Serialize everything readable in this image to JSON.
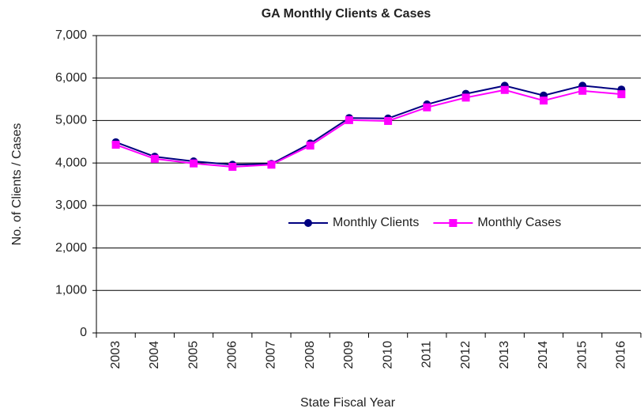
{
  "chart_data": {
    "type": "line",
    "title": "GA Monthly Clients & Cases",
    "x_label": "State Fiscal Year",
    "y_label": "No. of Clients / Cases",
    "categories": [
      "2003",
      "2004",
      "2005",
      "2006",
      "2007",
      "2008",
      "2009",
      "2010",
      "2011",
      "2012",
      "2013",
      "2014",
      "2015",
      "2016"
    ],
    "series": [
      {
        "name": "Monthly Clients",
        "color": "#000080",
        "marker": "circle",
        "values": [
          4490,
          4150,
          4040,
          3960,
          3980,
          4460,
          5060,
          5050,
          5380,
          5630,
          5820,
          5590,
          5820,
          5730
        ]
      },
      {
        "name": "Monthly Cases",
        "color": "#ff00ff",
        "marker": "square",
        "values": [
          4430,
          4100,
          3990,
          3910,
          3960,
          4410,
          5010,
          4990,
          5310,
          5540,
          5720,
          5470,
          5700,
          5620
        ]
      }
    ],
    "ylim": [
      0,
      7000
    ],
    "yticks": [
      0,
      {
        "value": 1000,
        "label": "1,000"
      },
      {
        "value": 2000,
        "label": "2,000"
      },
      {
        "value": 3000,
        "label": "3,000"
      },
      {
        "value": 4000,
        "label": "4,000"
      },
      {
        "value": 5000,
        "label": "5,000"
      },
      {
        "value": 6000,
        "label": "6,000"
      },
      {
        "value": 7000,
        "label": "7,000"
      }
    ],
    "grid": true,
    "legend_position": "right"
  }
}
